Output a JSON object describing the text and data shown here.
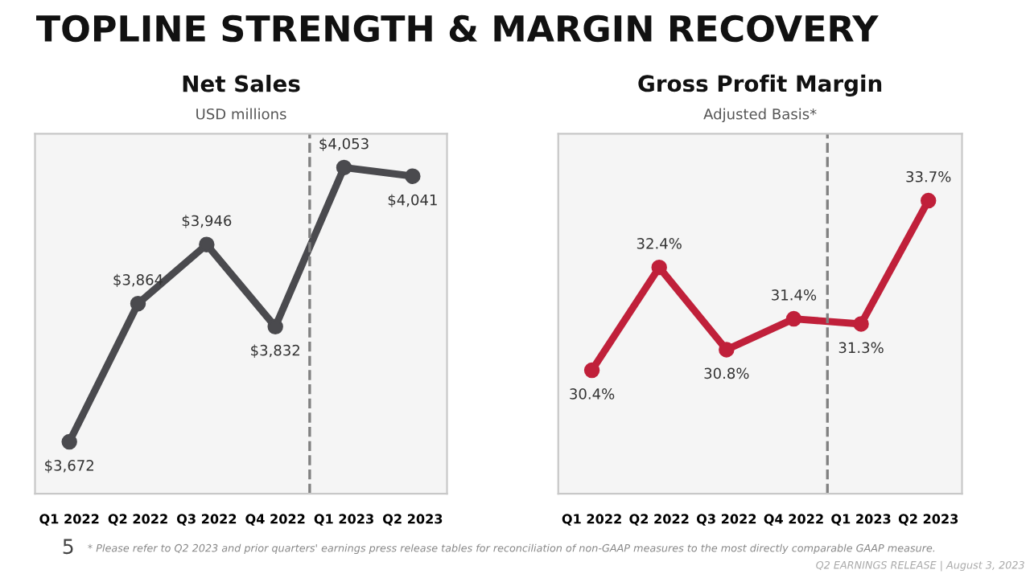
{
  "chart_data": [
    {
      "type": "line",
      "title": "Net Sales",
      "subtitle": "USD millions",
      "categories": [
        "Q1 2022",
        "Q2 2022",
        "Q3 2022",
        "Q4 2022",
        "Q1 2023",
        "Q2 2023"
      ],
      "series": [
        {
          "color": "#4a4a4e",
          "values": [
            3672,
            3864,
            3946,
            3832,
            4053,
            4041
          ],
          "value_labels": [
            "$3,672",
            "$3,864",
            "$3,946",
            "$3,832",
            "$4,053",
            "$4,041"
          ]
        }
      ],
      "ylim": [
        3600,
        4100
      ],
      "tick_labels": "x",
      "marker": "circle",
      "line_style": "solid",
      "grid": false,
      "legend": false,
      "annotations": [
        "TOPLINE STRENGTH & MARGIN RECOVERY",
        "5",
        "* Please refer to Q2 2023 and prior quarters' earnings press release tables for reconciliation of non-GAAP measures to the most directly comparable GAAP measure.",
        "Q2 EARNINGS RELEASE | August 3, 2023"
      ]
    },
    {
      "type": "line",
      "title": "Gross Profit Margin",
      "subtitle": "Adjusted Basis*",
      "categories": [
        "Q1 2022",
        "Q2 2022",
        "Q3 2022",
        "Q4 2022",
        "Q1 2023",
        "Q2 2023"
      ],
      "series": [
        {
          "color": "#c0203a",
          "values": [
            30.4,
            32.4,
            30.8,
            31.4,
            31.3,
            33.7
          ],
          "value_labels": [
            "30.4%",
            "32.4%",
            "30.8%",
            "31.4%",
            "31.3%",
            "33.7%"
          ]
        }
      ],
      "ylim": [
        28,
        35
      ],
      "tick_labels": "x",
      "marker": "circle",
      "line_style": "solid",
      "grid": false,
      "legend": false
    }
  ]
}
